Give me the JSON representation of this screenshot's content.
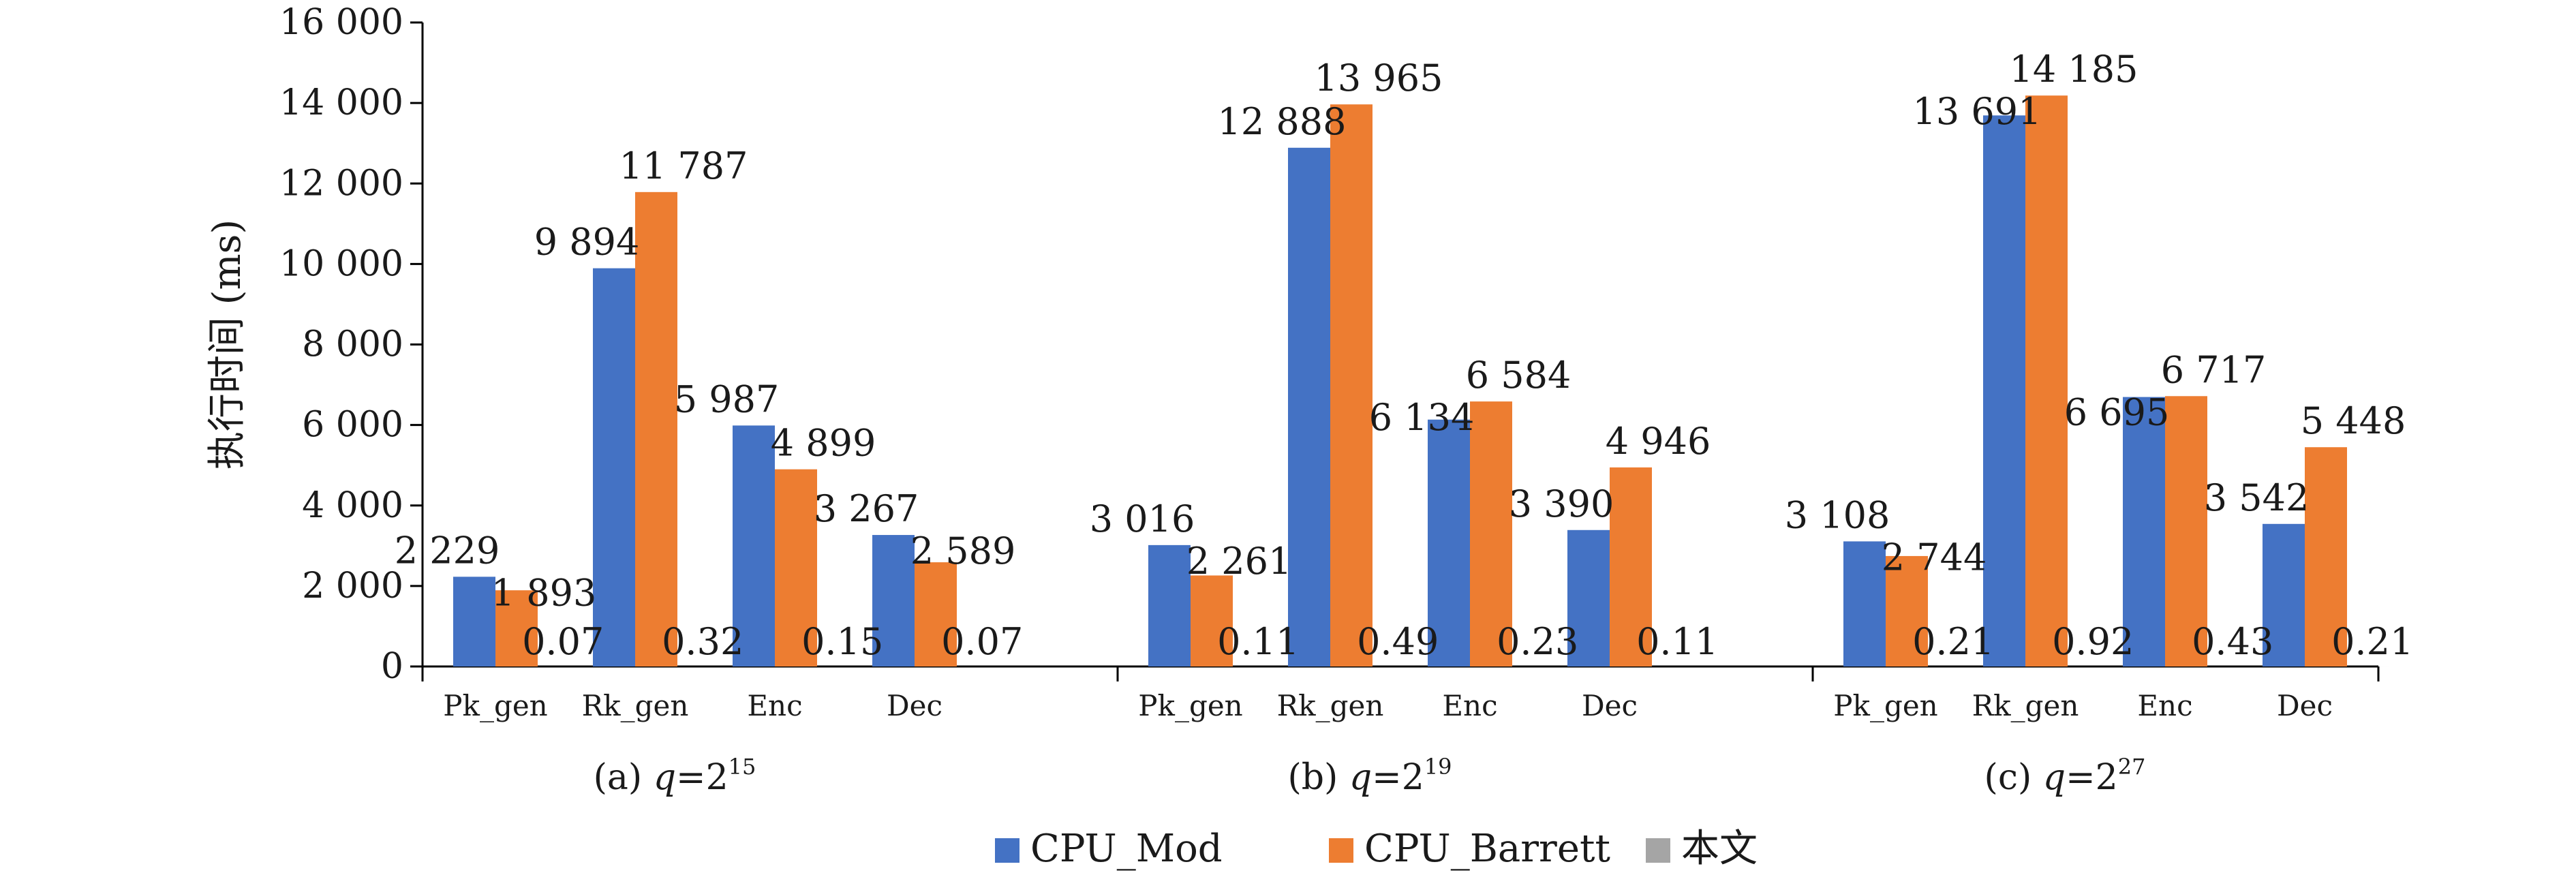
{
  "chart_data": {
    "type": "bar",
    "ylabel": "执行时间 (ms)",
    "ylim": [
      0,
      16000
    ],
    "yticks": [
      "0",
      "2 000",
      "4 000",
      "6 000",
      "8 000",
      "10 000",
      "12 000",
      "14 000",
      "16 000"
    ],
    "categories": [
      "Pk_gen",
      "Rk_gen",
      "Enc",
      "Dec"
    ],
    "legend_position": "bottom",
    "series_meta": [
      {
        "name": "CPU_Mod",
        "color": "#4472C4"
      },
      {
        "name": "CPU_Barrett",
        "color": "#ED7D31"
      },
      {
        "name": "本文",
        "color": "#A5A5A5"
      }
    ],
    "groups": [
      {
        "caption": "(a) q=2",
        "caption_q_base": "2",
        "caption_exp": "15",
        "series": [
          {
            "name": "CPU_Mod",
            "values": [
              2229,
              9894,
              5987,
              3267
            ],
            "labels": [
              "2 229",
              "9 894",
              "5 987",
              "3 267"
            ]
          },
          {
            "name": "CPU_Barrett",
            "values": [
              1893,
              11787,
              4899,
              2589
            ],
            "labels": [
              "1 893",
              "11 787",
              "4 899",
              "2 589"
            ]
          },
          {
            "name": "本文",
            "values": [
              0.07,
              0.32,
              0.15,
              0.07
            ],
            "labels": [
              "0.07",
              "0.32",
              "0.15",
              "0.07"
            ]
          }
        ]
      },
      {
        "caption": "(b) q=2",
        "caption_q_base": "2",
        "caption_exp": "19",
        "series": [
          {
            "name": "CPU_Mod",
            "values": [
              3016,
              12888,
              6134,
              3390
            ],
            "labels": [
              "3 016",
              "12 888",
              "6 134",
              "3 390"
            ]
          },
          {
            "name": "CPU_Barrett",
            "values": [
              2261,
              13965,
              6584,
              4946
            ],
            "labels": [
              "2 261",
              "13 965",
              "6 584",
              "4 946"
            ]
          },
          {
            "name": "本文",
            "values": [
              0.11,
              0.49,
              0.23,
              0.11
            ],
            "labels": [
              "0.11",
              "0.49",
              "0.23",
              "0.11"
            ]
          }
        ]
      },
      {
        "caption": "(c) q=2",
        "caption_q_base": "2",
        "caption_exp": "27",
        "series": [
          {
            "name": "CPU_Mod",
            "values": [
              3108,
              13691,
              6695,
              3542
            ],
            "labels": [
              "3 108",
              "13 691",
              "6 695",
              "3 542"
            ]
          },
          {
            "name": "CPU_Barrett",
            "values": [
              2744,
              14185,
              6717,
              5448
            ],
            "labels": [
              "2 744",
              "14 185",
              "6 717",
              "5 448"
            ]
          },
          {
            "name": "本文",
            "values": [
              0.21,
              0.92,
              0.43,
              0.21
            ],
            "labels": [
              "0.21",
              "0.92",
              "0.43",
              "0.21"
            ]
          }
        ]
      }
    ]
  }
}
